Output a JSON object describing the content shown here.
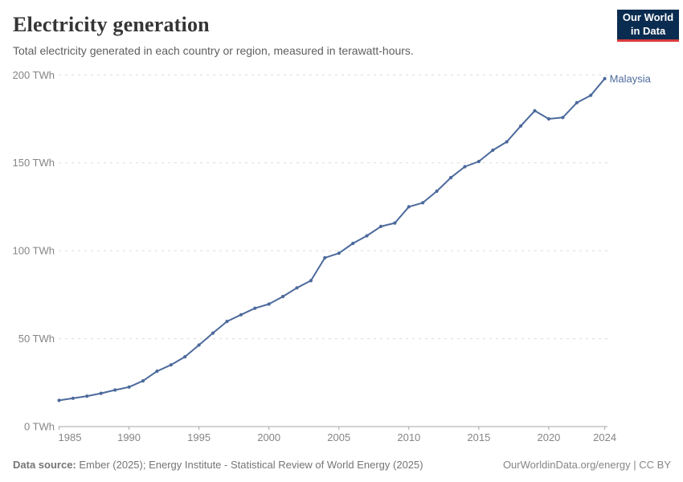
{
  "header": {
    "title": "Electricity generation",
    "subtitle": "Total electricity generated in each country or region, measured in terawatt-hours.",
    "logo": {
      "line1": "Our World",
      "line2": "in Data"
    }
  },
  "chart_data": {
    "type": "line",
    "title": "Electricity generation",
    "subtitle": "Total electricity generated in each country or region, measured in terawatt-hours.",
    "unit": "TWh",
    "xlim": [
      1985,
      2024
    ],
    "ylim": [
      0,
      200
    ],
    "grid": "horizontal-dashed",
    "legend_position": "end-of-line-label",
    "x_ticks": [
      1985,
      1990,
      1995,
      2000,
      2005,
      2010,
      2015,
      2020,
      2024
    ],
    "x_tick_labels": [
      "1985",
      "1990",
      "1995",
      "2000",
      "2005",
      "2010",
      "2015",
      "2020",
      "2024"
    ],
    "y_ticks": [
      0,
      50,
      100,
      150,
      200
    ],
    "y_tick_labels": [
      "0 TWh",
      "50 TWh",
      "100 TWh",
      "150 TWh",
      "200 TWh"
    ],
    "series": [
      {
        "name": "Malaysia",
        "color": "#4c6a9c",
        "x": [
          1985,
          1986,
          1987,
          1988,
          1989,
          1990,
          1991,
          1992,
          1993,
          1994,
          1995,
          1996,
          1997,
          1998,
          1999,
          2000,
          2001,
          2002,
          2003,
          2004,
          2005,
          2006,
          2007,
          2008,
          2009,
          2010,
          2011,
          2012,
          2013,
          2014,
          2015,
          2016,
          2017,
          2018,
          2019,
          2020,
          2021,
          2022,
          2023,
          2024
        ],
        "values": [
          14.9,
          16.1,
          17.3,
          18.9,
          20.8,
          22.5,
          26.0,
          31.5,
          35.1,
          39.7,
          46.4,
          53.2,
          59.8,
          63.6,
          67.3,
          69.7,
          74.0,
          78.9,
          83.0,
          96.0,
          98.6,
          104.2,
          108.5,
          113.8,
          115.8,
          125.0,
          127.3,
          133.9,
          141.6,
          147.8,
          150.8,
          157.2,
          162.0,
          171.0,
          179.6,
          175.0,
          175.8,
          184.2,
          188.4,
          197.9
        ]
      }
    ],
    "entity_label": "Malaysia"
  },
  "colors": {
    "line": "#4c6a9c",
    "gridline": "#dcdcdc",
    "axis": "#a6a6a6",
    "tick_label": "#858585"
  },
  "footer": {
    "datasource_label": "Data source:",
    "datasource_text": "Ember (2025); Energy Institute - Statistical Review of World Energy (2025)",
    "credit": "OurWorldinData.org/energy | CC BY"
  }
}
